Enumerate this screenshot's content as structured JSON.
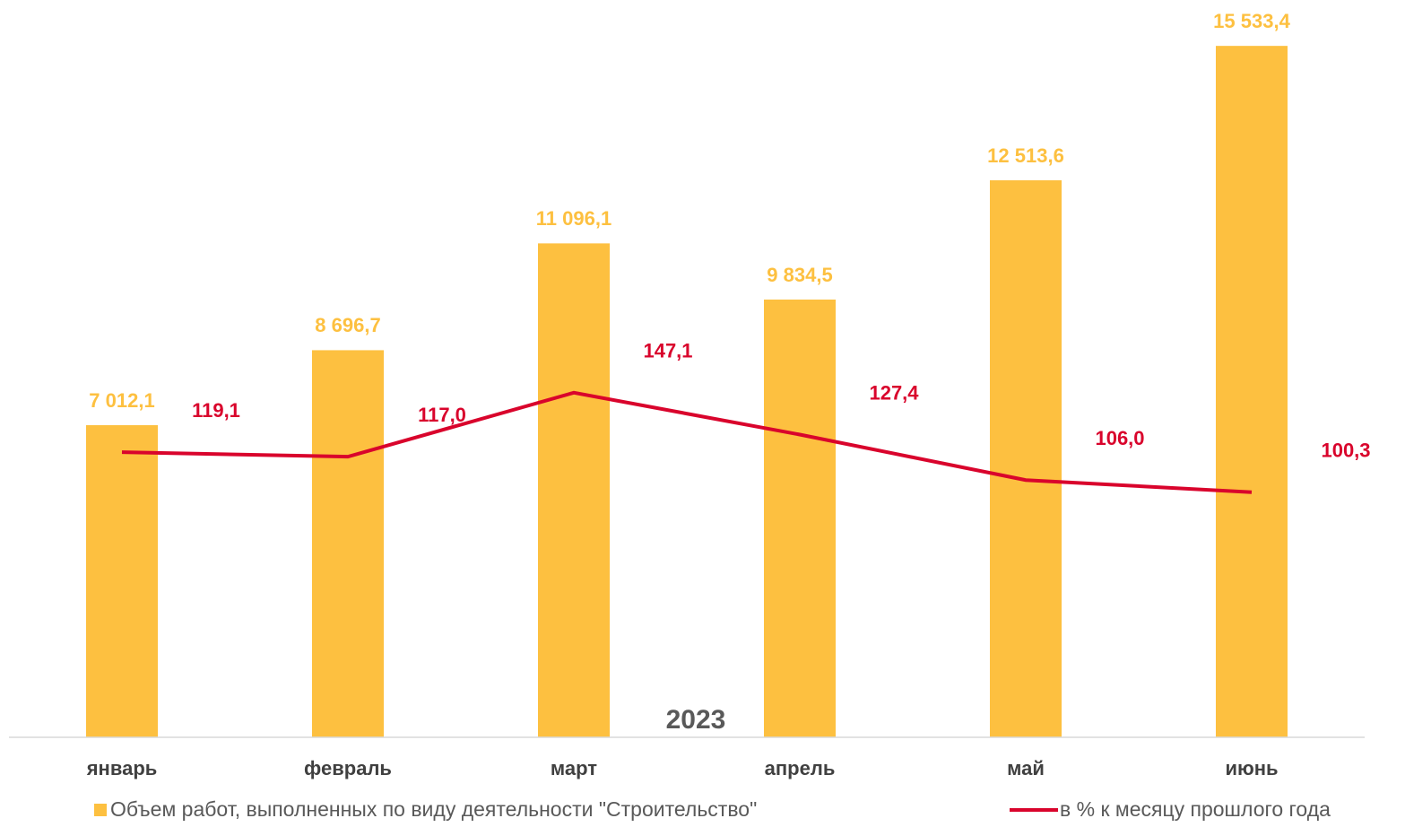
{
  "chart_data": {
    "type": "bar",
    "xlabel": "2023",
    "categories": [
      "январь",
      "февраль",
      "март",
      "апрель",
      "май",
      "июнь"
    ],
    "ylim": [
      0,
      16000
    ],
    "y2lim": [
      -15,
      320
    ],
    "series": [
      {
        "name": "Объем работ, выполненных по виду деятельности \"Строительство\"",
        "type": "bar",
        "color": "#FDC040",
        "values": [
          7012.1,
          8696.7,
          11096.1,
          9834.5,
          12513.6,
          15533.4
        ],
        "value_labels": [
          "7 012,1",
          "8 696,7",
          "11 096,1",
          "9 834,5",
          "12 513,6",
          "15 533,4"
        ]
      },
      {
        "name": "в % к месяцу прошлого года",
        "type": "line",
        "axis": "y2",
        "color": "#D9042C",
        "values": [
          119.1,
          117.0,
          147.1,
          127.4,
          106.0,
          100.3
        ],
        "value_labels": [
          "119,1",
          "117,0",
          "147,1",
          "127,4",
          "106,0",
          "100,3"
        ]
      }
    ]
  }
}
